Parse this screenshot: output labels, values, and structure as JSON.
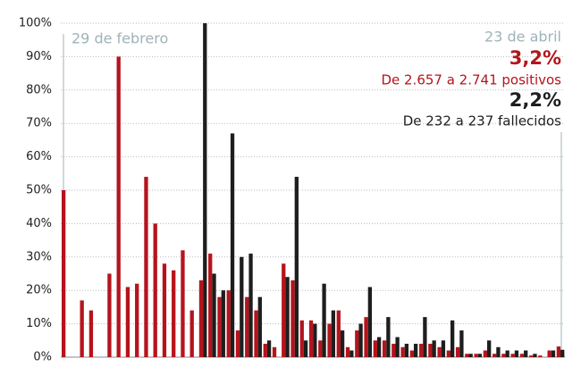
{
  "chart_data": {
    "type": "bar",
    "annotations": [
      "29 de febrero",
      "23 de abril",
      "3,2%",
      "De 2.657 a 2.741 positivos",
      "2,2%",
      "De 232 a 237 fallecidos"
    ],
    "categories": [
      null,
      null,
      null,
      null,
      null,
      null,
      null,
      null,
      null,
      null,
      null,
      null,
      null,
      null,
      null,
      null,
      null,
      null,
      null,
      null,
      null,
      null,
      null,
      null,
      null,
      null,
      null,
      null,
      null,
      null,
      null,
      null,
      null,
      null,
      null,
      null,
      null,
      null,
      null,
      null,
      null,
      null,
      null,
      null,
      null,
      null,
      null,
      null,
      null,
      null,
      null,
      null,
      null,
      null,
      null
    ],
    "series": [
      {
        "color": "#b5141c",
        "values": [
          50,
          0,
          17,
          14,
          0,
          25,
          90,
          21,
          22,
          54,
          40,
          28,
          26,
          32,
          14,
          23,
          31,
          18,
          20,
          8,
          18,
          14,
          4,
          3,
          28,
          23,
          11,
          11,
          5,
          10,
          14,
          3,
          8,
          12,
          5,
          5,
          4,
          3,
          2,
          4,
          4,
          3,
          2,
          3,
          1,
          1,
          2,
          1,
          1,
          1,
          1,
          0.5,
          0.5,
          2,
          3.2
        ]
      },
      {
        "color": "#1e1e1e",
        "values": [
          null,
          null,
          null,
          null,
          null,
          null,
          null,
          null,
          null,
          null,
          null,
          null,
          null,
          null,
          null,
          100,
          25,
          20,
          67,
          30,
          31,
          18,
          5,
          0,
          24,
          54,
          5,
          10,
          22,
          14,
          8,
          2,
          10,
          21,
          6,
          12,
          6,
          4,
          4,
          12,
          5,
          5,
          11,
          8,
          1,
          1,
          5,
          3,
          2,
          2,
          2,
          1,
          0,
          2,
          2.2
        ]
      }
    ],
    "ylim": [
      0,
      100
    ],
    "yticks": [
      {
        "value": 0,
        "label": "0%"
      },
      {
        "value": 10,
        "label": "10%"
      },
      {
        "value": 20,
        "label": "20%"
      },
      {
        "value": 30,
        "label": "30%"
      },
      {
        "value": 40,
        "label": "40%"
      },
      {
        "value": 50,
        "label": "50%"
      },
      {
        "value": 60,
        "label": "60%"
      },
      {
        "value": 70,
        "label": "70%"
      },
      {
        "value": 80,
        "label": "80%"
      },
      {
        "value": 90,
        "label": "90%"
      },
      {
        "value": 100,
        "label": "100%"
      }
    ],
    "grid": true
  }
}
